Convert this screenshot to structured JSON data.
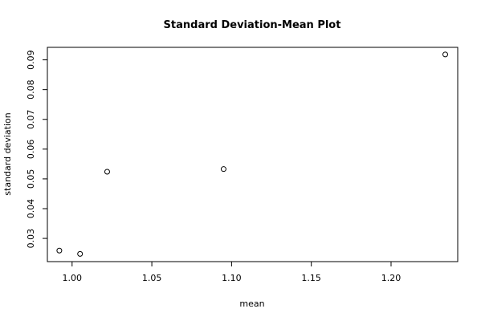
{
  "chart_data": {
    "type": "scatter",
    "title": "Standard Deviation-Mean Plot",
    "xlabel": "mean",
    "ylabel": "standard deviation",
    "xlim": [
      0.9845,
      1.2418
    ],
    "ylim": [
      0.0222,
      0.0942
    ],
    "x_ticks": [
      1.0,
      1.05,
      1.1,
      1.15,
      1.2
    ],
    "x_tick_labels": [
      "1.00",
      "1.05",
      "1.10",
      "1.15",
      "1.20"
    ],
    "y_ticks": [
      0.03,
      0.04,
      0.05,
      0.06,
      0.07,
      0.08,
      0.09
    ],
    "y_tick_labels": [
      "0.03",
      "0.04",
      "0.05",
      "0.06",
      "0.07",
      "0.08",
      "0.09"
    ],
    "grid": false,
    "marker": "open-circle",
    "points": [
      {
        "x": 0.992,
        "y": 0.0259
      },
      {
        "x": 1.005,
        "y": 0.0248
      },
      {
        "x": 1.022,
        "y": 0.0524
      },
      {
        "x": 1.095,
        "y": 0.0533
      },
      {
        "x": 1.234,
        "y": 0.0918
      }
    ]
  }
}
